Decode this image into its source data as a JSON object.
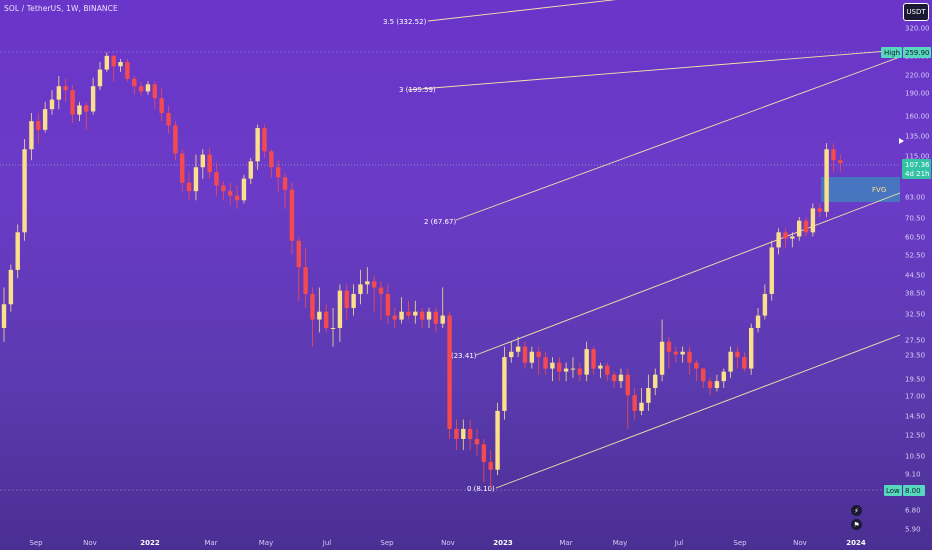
{
  "header": {
    "symbol_title": "SOL / TetherUS, 1W, BINANCE",
    "currency": "USDT"
  },
  "colors": {
    "up": "#fbe08c",
    "down": "#f44a4f",
    "channel": "#f3e5a8",
    "fvg_fill": "#2aa6b8",
    "tag_teal": "#57d7bd",
    "last_price": "#32c2a4"
  },
  "price_axis": {
    "scale": "log",
    "ticks": [
      "320.00",
      "260.00",
      "220.00",
      "190.00",
      "160.00",
      "135.00",
      "115.00",
      "83.00",
      "70.50",
      "60.50",
      "52.50",
      "44.50",
      "38.50",
      "32.50",
      "27.50",
      "23.50",
      "19.50",
      "17.00",
      "14.50",
      "12.50",
      "10.50",
      "9.10",
      "6.80",
      "5.90"
    ]
  },
  "time_axis": {
    "labels": [
      {
        "text": "Sep",
        "year": false
      },
      {
        "text": "Nov",
        "year": false
      },
      {
        "text": "2022",
        "year": true
      },
      {
        "text": "Mar",
        "year": false
      },
      {
        "text": "May",
        "year": false
      },
      {
        "text": "Jul",
        "year": false
      },
      {
        "text": "Sep",
        "year": false
      },
      {
        "text": "Nov",
        "year": false
      },
      {
        "text": "2023",
        "year": true
      },
      {
        "text": "Mar",
        "year": false
      },
      {
        "text": "May",
        "year": false
      },
      {
        "text": "Jul",
        "year": false
      },
      {
        "text": "Sep",
        "year": false
      },
      {
        "text": "Nov",
        "year": false
      },
      {
        "text": "2024",
        "year": true
      }
    ]
  },
  "tags": {
    "high_label": "High",
    "high_value": "259.90",
    "low_label": "Low",
    "low_value": "8.00",
    "last_price": "107.36",
    "countdown": "4d 21h"
  },
  "fib_levels": [
    {
      "label": "3.5 (332.52)"
    },
    {
      "label": "3 (195.59)"
    },
    {
      "label": "2 (67.67)"
    },
    {
      "label": "(23.41)"
    },
    {
      "label": "0 (8.10)"
    }
  ],
  "fvg_label": "FVG",
  "chart_data": {
    "type": "candlestick",
    "symbol": "SOL / TetherUS",
    "interval": "1W",
    "exchange": "BINANCE",
    "y_scale": "log",
    "ylim": [
      5.5,
      420
    ],
    "high": 259.9,
    "low": 8.0,
    "last": 107.36,
    "candles": [
      [
        29,
        35,
        26,
        40
      ],
      [
        35,
        46,
        33,
        48
      ],
      [
        46,
        62,
        43,
        66
      ],
      [
        62,
        120,
        58,
        130
      ],
      [
        120,
        150,
        110,
        160
      ],
      [
        150,
        140,
        126,
        160
      ],
      [
        140,
        165,
        137,
        175
      ],
      [
        165,
        178,
        158,
        192
      ],
      [
        178,
        198,
        165,
        215
      ],
      [
        198,
        192,
        175,
        210
      ],
      [
        192,
        158,
        148,
        200
      ],
      [
        158,
        170,
        150,
        175
      ],
      [
        170,
        162,
        140,
        175
      ],
      [
        162,
        198,
        158,
        212
      ],
      [
        198,
        226,
        192,
        240
      ],
      [
        226,
        252,
        222,
        259
      ],
      [
        252,
        232,
        206,
        255
      ],
      [
        232,
        240,
        222,
        246
      ],
      [
        240,
        210,
        205,
        246
      ],
      [
        210,
        198,
        185,
        215
      ],
      [
        198,
        190,
        182,
        205
      ],
      [
        190,
        201,
        185,
        206
      ],
      [
        201,
        180,
        165,
        206
      ],
      [
        180,
        160,
        150,
        195
      ],
      [
        160,
        145,
        136,
        170
      ],
      [
        145,
        116,
        110,
        150
      ],
      [
        116,
        92,
        86,
        120
      ],
      [
        92,
        86,
        80,
        100
      ],
      [
        86,
        104,
        80,
        115
      ],
      [
        104,
        115,
        95,
        120
      ],
      [
        115,
        100,
        95,
        121
      ],
      [
        100,
        90,
        83,
        108
      ],
      [
        90,
        86,
        80,
        93
      ],
      [
        86,
        83,
        77,
        92
      ],
      [
        83,
        80,
        75,
        90
      ],
      [
        80,
        95,
        78,
        98
      ],
      [
        95,
        109,
        91,
        112
      ],
      [
        109,
        142,
        102,
        146
      ],
      [
        142,
        118,
        112,
        146
      ],
      [
        118,
        104,
        96,
        120
      ],
      [
        104,
        96,
        85,
        110
      ],
      [
        96,
        87,
        75,
        99
      ],
      [
        87,
        58,
        52,
        92
      ],
      [
        58,
        47,
        36,
        60
      ],
      [
        47,
        38,
        34,
        55
      ],
      [
        38,
        31,
        25,
        40
      ],
      [
        31,
        33,
        28,
        40
      ],
      [
        33,
        29,
        28,
        35
      ],
      [
        29,
        29,
        25,
        34
      ],
      [
        29,
        39,
        26,
        41
      ],
      [
        39,
        34,
        31,
        41
      ],
      [
        34,
        38,
        32,
        41
      ],
      [
        38,
        41,
        35,
        46
      ],
      [
        41,
        42,
        38,
        47
      ],
      [
        42,
        40,
        33,
        44
      ],
      [
        40,
        38,
        31,
        42
      ],
      [
        38,
        32,
        30,
        41
      ],
      [
        32,
        31,
        29,
        34
      ],
      [
        31,
        33,
        30,
        37
      ],
      [
        33,
        32,
        31,
        36
      ],
      [
        32,
        33,
        30,
        36
      ],
      [
        33,
        31,
        29,
        34
      ],
      [
        31,
        33,
        29,
        34
      ],
      [
        33,
        30,
        28,
        34
      ],
      [
        30,
        32,
        29,
        40
      ],
      [
        32,
        13,
        12,
        33
      ],
      [
        13,
        12,
        11,
        14
      ],
      [
        12,
        13,
        11,
        14
      ],
      [
        13,
        12,
        11,
        14
      ],
      [
        12,
        11.5,
        10.5,
        13
      ],
      [
        11.5,
        10,
        8.5,
        12
      ],
      [
        10,
        9.4,
        8,
        11
      ],
      [
        9.4,
        15,
        9,
        16
      ],
      [
        15,
        23,
        14,
        25
      ],
      [
        23,
        24,
        22,
        26
      ],
      [
        24,
        25,
        23,
        27
      ],
      [
        25,
        22,
        21,
        26
      ],
      [
        22,
        24,
        21,
        25
      ],
      [
        24,
        23,
        20,
        25
      ],
      [
        23,
        21,
        20,
        24
      ],
      [
        21,
        22,
        19,
        23
      ],
      [
        22,
        20.5,
        19,
        23
      ],
      [
        20.5,
        21,
        19,
        22
      ],
      [
        21,
        21,
        19.5,
        23
      ],
      [
        21,
        20,
        19,
        22
      ],
      [
        20,
        24.5,
        19,
        26
      ],
      [
        24.5,
        21,
        20,
        25
      ],
      [
        21,
        21.5,
        19.5,
        22
      ],
      [
        21.5,
        20,
        19,
        22
      ],
      [
        20,
        19,
        18,
        20.5
      ],
      [
        19,
        20,
        18,
        21
      ],
      [
        20,
        17,
        13,
        21
      ],
      [
        17,
        15,
        14,
        18
      ],
      [
        15,
        16,
        14.5,
        18
      ],
      [
        16,
        18,
        15,
        20
      ],
      [
        18,
        20,
        17,
        21
      ],
      [
        20,
        26,
        19,
        31
      ],
      [
        26,
        24,
        21,
        27
      ],
      [
        24,
        23.5,
        22,
        25
      ],
      [
        23.5,
        24,
        22,
        25
      ],
      [
        24,
        22,
        20,
        25
      ],
      [
        22,
        21,
        19,
        22.5
      ],
      [
        21,
        19,
        18,
        21
      ],
      [
        19,
        18,
        17,
        19.5
      ],
      [
        18,
        19,
        17.5,
        20
      ],
      [
        19,
        20.5,
        18,
        21
      ],
      [
        20.5,
        24,
        19.5,
        25
      ],
      [
        24,
        23,
        21,
        25
      ],
      [
        23,
        21,
        20.5,
        24
      ],
      [
        21,
        29,
        20,
        30
      ],
      [
        29,
        32,
        28,
        34
      ],
      [
        32,
        38,
        31,
        41
      ],
      [
        38,
        55,
        36,
        58
      ],
      [
        55,
        62,
        52,
        64
      ],
      [
        62,
        59,
        55,
        64
      ],
      [
        59,
        60,
        55,
        62
      ],
      [
        60,
        68,
        58,
        70
      ],
      [
        68,
        62,
        60,
        70
      ],
      [
        62,
        75,
        60,
        78
      ],
      [
        75,
        73,
        70,
        78
      ],
      [
        73,
        120,
        70,
        126
      ],
      [
        120,
        110,
        100,
        126
      ],
      [
        110,
        107.36,
        100,
        115
      ]
    ],
    "fib_levels": [
      {
        "ratio": 0,
        "price": 8.1
      },
      {
        "ratio": 1,
        "price": 23.41
      },
      {
        "ratio": 2,
        "price": 67.67
      },
      {
        "ratio": 3,
        "price": 195.59
      },
      {
        "ratio": 3.5,
        "price": 332.52
      }
    ],
    "fvg": {
      "low": 80,
      "high": 98
    },
    "annotations": [
      "FVG",
      "High 259.90",
      "Low 8.00"
    ]
  }
}
